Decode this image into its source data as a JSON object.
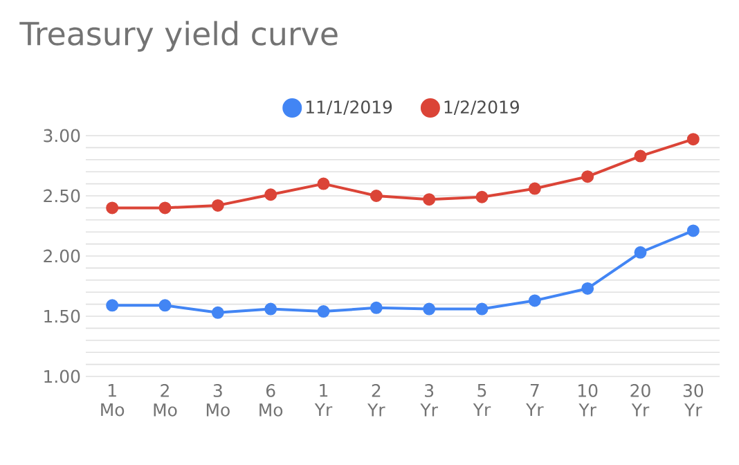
{
  "chart_data": {
    "type": "line",
    "title": "Treasury yield curve",
    "categories": [
      "1 Mo",
      "2 Mo",
      "3 Mo",
      "6 Mo",
      "1 Yr",
      "2 Yr",
      "3 Yr",
      "5 Yr",
      "7 Yr",
      "10 Yr",
      "20 Yr",
      "30 Yr"
    ],
    "series": [
      {
        "name": "11/1/2019",
        "color": "#4285f4",
        "values": [
          1.59,
          1.59,
          1.53,
          1.56,
          1.54,
          1.57,
          1.56,
          1.56,
          1.63,
          1.73,
          2.03,
          2.21
        ]
      },
      {
        "name": "1/2/2019",
        "color": "#db4437",
        "values": [
          2.4,
          2.4,
          2.42,
          2.51,
          2.6,
          2.5,
          2.47,
          2.49,
          2.56,
          2.66,
          2.83,
          2.97
        ]
      }
    ],
    "ylim": [
      1.0,
      3.0
    ],
    "yticks": [
      {
        "value": 1.0,
        "label": "1.00"
      },
      {
        "value": 1.1,
        "label": null
      },
      {
        "value": 1.2,
        "label": null
      },
      {
        "value": 1.3,
        "label": null
      },
      {
        "value": 1.4,
        "label": null
      },
      {
        "value": 1.5,
        "label": "1.50"
      },
      {
        "value": 1.6,
        "label": null
      },
      {
        "value": 1.7,
        "label": null
      },
      {
        "value": 1.8,
        "label": null
      },
      {
        "value": 1.9,
        "label": null
      },
      {
        "value": 2.0,
        "label": "2.00"
      },
      {
        "value": 2.1,
        "label": null
      },
      {
        "value": 2.2,
        "label": null
      },
      {
        "value": 2.3,
        "label": null
      },
      {
        "value": 2.4,
        "label": null
      },
      {
        "value": 2.5,
        "label": "2.50"
      },
      {
        "value": 2.6,
        "label": null
      },
      {
        "value": 2.7,
        "label": null
      },
      {
        "value": 2.8,
        "label": null
      },
      {
        "value": 2.9,
        "label": null
      },
      {
        "value": 3.0,
        "label": "3.00"
      }
    ],
    "grid": "y",
    "legend": "top",
    "marker": "circle",
    "line_style": "solid"
  }
}
